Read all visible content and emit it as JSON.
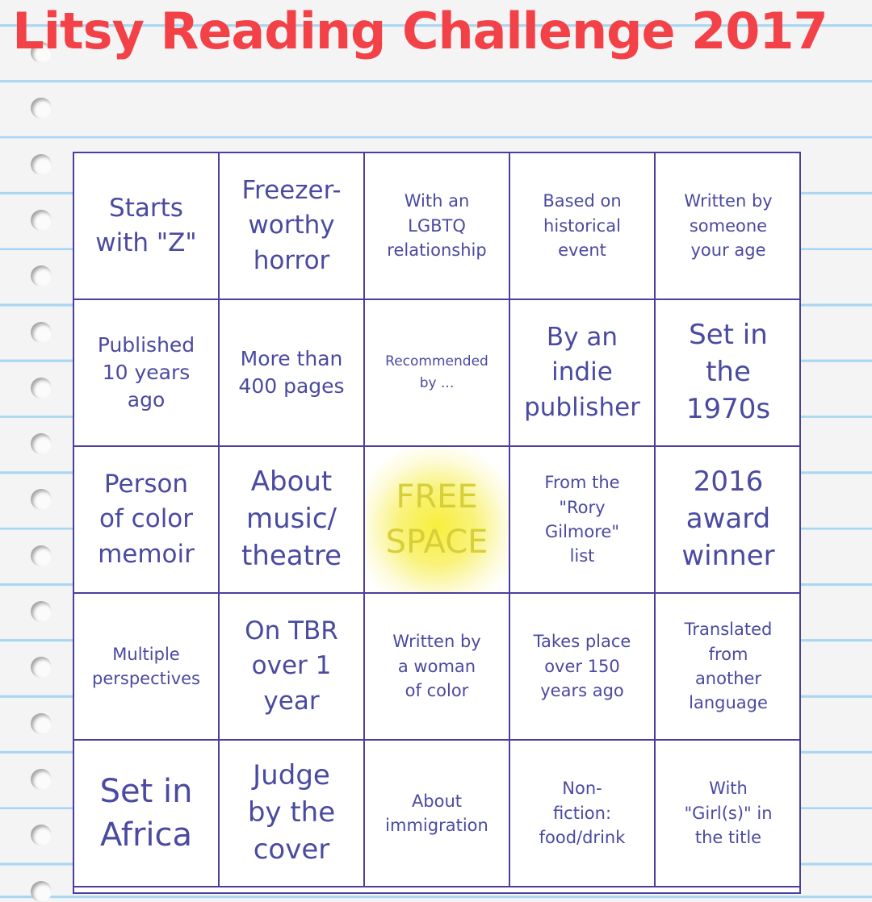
{
  "title": "Litsy Reading Challenge 2017",
  "colors": {
    "title": "#f24147",
    "grid": "#4b3f9e",
    "text": "#4a4aa0",
    "free_space": "#f7ef3c",
    "paper_lines": "#a9d6f2"
  },
  "cells": [
    "Starts\nwith \"Z\"",
    "Freezer-\nworthy\nhorror",
    "With an\nLGBTQ\nrelationship",
    "Based on\nhistorical\nevent",
    "Written by\nsomeone\nyour age",
    "Published\n10 years\nago",
    "More than\n400 pages",
    "Recommended\nby ...",
    "By an\nindie\npublisher",
    "Set in\nthe\n1970s",
    "Person\nof color\nmemoir",
    "About\nmusic/\ntheatre",
    "FREE\nSPACE",
    "From the\n\"Rory\nGilmore\"\nlist",
    "2016\naward\nwinner",
    "Multiple\nperspectives",
    "On TBR\nover 1\nyear",
    "Written by\na woman\nof color",
    "Takes place\nover 150\nyears ago",
    "Translated\nfrom\nanother\nlanguage",
    "Set in\nAfrica",
    "Judge\nby the\ncover",
    "About\nimmigration",
    "Non-\nfiction:\nfood/drink",
    "With\n\"Girl(s)\" in\nthe title"
  ]
}
